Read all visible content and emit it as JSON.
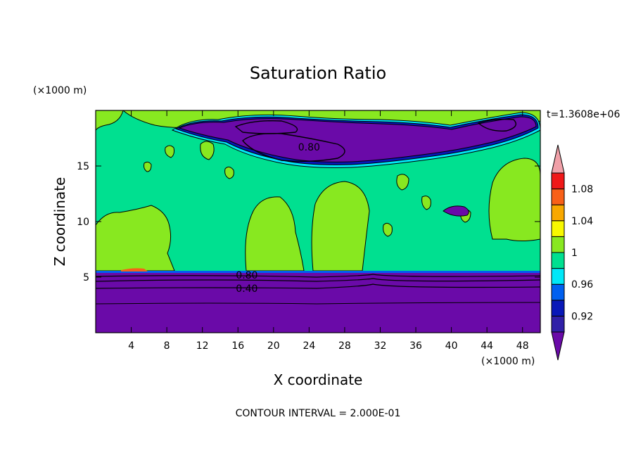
{
  "chart_data": {
    "type": "heatmap",
    "title": "Saturation Ratio",
    "xlabel": "X coordinate",
    "ylabel": "Z coordinate",
    "x_unit": "(×1000 m)",
    "y_unit": "(×1000 m)",
    "time_label": "t=1.3608e+06",
    "footer": "CONTOUR INTERVAL = 2.000E-01",
    "xlim": [
      0,
      50
    ],
    "ylim": [
      0,
      20
    ],
    "x_ticks": [
      4,
      8,
      12,
      16,
      20,
      24,
      28,
      32,
      36,
      40,
      44,
      48
    ],
    "y_ticks": [
      5,
      10,
      15
    ],
    "contour_labels": [
      {
        "text": "0.80",
        "x": 24,
        "y": 16.7
      },
      {
        "text": "0.80",
        "x": 17,
        "y": 5.2
      },
      {
        "text": "0.40",
        "x": 17,
        "y": 4.0
      }
    ],
    "colorbar": {
      "levels": [
        0.92,
        0.94,
        0.96,
        0.98,
        1.0,
        1.02,
        1.04,
        1.06,
        1.08
      ],
      "tick_labels": [
        "1.08",
        "1.04",
        "1",
        "0.96",
        "0.92"
      ],
      "tick_values": [
        1.08,
        1.04,
        1.0,
        0.96,
        0.92
      ],
      "colors_low_to_high": [
        "#6a0aa8",
        "#3020a8",
        "#0818b8",
        "#0060f0",
        "#00e8f8",
        "#00e090",
        "#88e820",
        "#f8f800",
        "#f8a800",
        "#f86018",
        "#f01818",
        "#f0a0a8"
      ]
    },
    "regions": {
      "lower_dry_layer": {
        "z_top": 5.4,
        "value_range": "< 0.92"
      },
      "mid_layer": {
        "z_range": [
          5.4,
          15
        ],
        "value_range": "0.98 - 1.02"
      },
      "upper_dry_band": {
        "z_range": [
          15,
          20
        ],
        "value_range": "< 0.92 patches"
      }
    }
  }
}
